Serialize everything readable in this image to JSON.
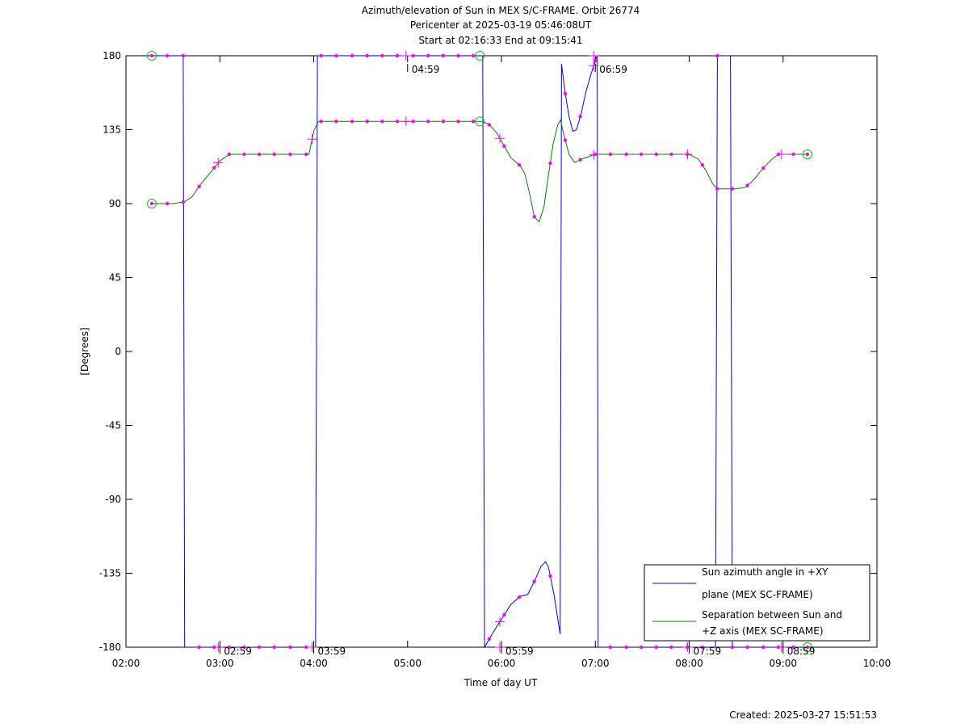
{
  "chart_data": {
    "type": "line",
    "title": "Azimuth/elevation of Sun in MEX S/C-FRAME.  Orbit 26774",
    "subtitle_1": "Pericenter at 2025-03-19 05:46:08UT",
    "subtitle_2": "Start at 02:16:33 End at 09:15:41",
    "xlabel": "Time of day UT",
    "ylabel": "[Degrees]",
    "xlim": [
      2.0,
      10.0
    ],
    "ylim": [
      -180,
      180
    ],
    "x_ticks": [
      "02:00",
      "03:00",
      "04:00",
      "05:00",
      "06:00",
      "07:00",
      "08:00",
      "09:00",
      "10:00"
    ],
    "y_ticks": [
      "180",
      "135",
      "90",
      "45",
      "0",
      "-45",
      "-90",
      "-135",
      "-180"
    ],
    "grid": false,
    "legend_position": "bottom-right",
    "footer": "Created: 2025-03-27 15:51:53",
    "series": [
      {
        "name": "Sun azimuth angle in +XY plane (MEX SC-FRAME)",
        "legend_line1": "Sun azimuth angle in +XY",
        "legend_line2": "plane (MEX SC-FRAME)",
        "color": "#0000ff",
        "points": [
          [
            2.275,
            180
          ],
          [
            2.61,
            180
          ],
          [
            2.625,
            -180
          ],
          [
            2.9,
            -180
          ],
          [
            3.2,
            -180
          ],
          [
            3.5,
            -180
          ],
          [
            3.8,
            -180
          ],
          [
            4.02,
            -180
          ],
          [
            4.04,
            180
          ],
          [
            4.4,
            180
          ],
          [
            4.8,
            180
          ],
          [
            5.2,
            180
          ],
          [
            5.6,
            180
          ],
          [
            5.8,
            180
          ],
          [
            5.82,
            -180
          ],
          [
            5.9,
            -172
          ],
          [
            6.0,
            -163
          ],
          [
            6.1,
            -154
          ],
          [
            6.2,
            -149
          ],
          [
            6.28,
            -148
          ],
          [
            6.35,
            -140
          ],
          [
            6.42,
            -131
          ],
          [
            6.47,
            -128
          ],
          [
            6.5,
            -131
          ],
          [
            6.56,
            -148
          ],
          [
            6.6,
            -163
          ],
          [
            6.625,
            -172
          ],
          [
            6.64,
            175
          ],
          [
            6.68,
            157
          ],
          [
            6.72,
            143
          ],
          [
            6.76,
            134
          ],
          [
            6.8,
            135
          ],
          [
            6.85,
            145
          ],
          [
            6.9,
            158
          ],
          [
            6.95,
            168
          ],
          [
            7.0,
            177
          ],
          [
            7.02,
            180
          ],
          [
            7.03,
            -180
          ],
          [
            7.3,
            -180
          ],
          [
            7.7,
            -180
          ],
          [
            8.1,
            -180
          ],
          [
            8.28,
            -180
          ],
          [
            8.3,
            180
          ],
          [
            8.44,
            180
          ],
          [
            8.46,
            -180
          ],
          [
            8.7,
            -180
          ],
          [
            9.0,
            -180
          ],
          [
            9.26,
            -180
          ]
        ]
      },
      {
        "name": "Separation between Sun and +Z axis (MEX SC-FRAME)",
        "legend_line1": "Separation between Sun and",
        "legend_line2": "+Z axis (MEX SC-FRAME)",
        "color": "#008000",
        "points": [
          [
            2.275,
            90
          ],
          [
            2.5,
            90
          ],
          [
            2.62,
            91
          ],
          [
            2.7,
            94
          ],
          [
            2.8,
            102
          ],
          [
            2.9,
            109
          ],
          [
            3.0,
            116
          ],
          [
            3.1,
            120
          ],
          [
            3.2,
            120
          ],
          [
            3.5,
            120
          ],
          [
            3.8,
            120
          ],
          [
            3.95,
            120
          ],
          [
            4.0,
            134
          ],
          [
            4.05,
            140
          ],
          [
            4.3,
            140
          ],
          [
            4.7,
            140
          ],
          [
            5.1,
            140
          ],
          [
            5.5,
            140
          ],
          [
            5.8,
            140
          ],
          [
            5.87,
            138
          ],
          [
            5.95,
            133
          ],
          [
            6.02,
            126
          ],
          [
            6.1,
            118
          ],
          [
            6.2,
            113
          ],
          [
            6.25,
            108
          ],
          [
            6.3,
            96
          ],
          [
            6.35,
            82
          ],
          [
            6.4,
            79
          ],
          [
            6.45,
            87
          ],
          [
            6.5,
            107
          ],
          [
            6.55,
            126
          ],
          [
            6.6,
            138
          ],
          [
            6.63,
            141
          ],
          [
            6.66,
            133
          ],
          [
            6.72,
            120
          ],
          [
            6.78,
            115
          ],
          [
            6.85,
            117
          ],
          [
            6.95,
            119
          ],
          [
            7.0,
            120
          ],
          [
            7.3,
            120
          ],
          [
            7.7,
            120
          ],
          [
            8.0,
            120
          ],
          [
            8.1,
            117
          ],
          [
            8.18,
            110
          ],
          [
            8.25,
            102
          ],
          [
            8.3,
            99
          ],
          [
            8.5,
            99
          ],
          [
            8.6,
            100
          ],
          [
            8.68,
            104
          ],
          [
            8.78,
            111
          ],
          [
            8.88,
            117
          ],
          [
            8.95,
            120
          ],
          [
            9.1,
            120
          ],
          [
            9.26,
            120
          ]
        ]
      }
    ],
    "markers": {
      "color": "#ff00ff",
      "x": [
        2.275,
        2.44,
        2.61,
        2.78,
        2.94,
        3.1,
        3.26,
        3.42,
        3.58,
        3.75,
        3.92,
        4.08,
        4.24,
        4.41,
        4.57,
        4.73,
        4.89,
        5.06,
        5.22,
        5.38,
        5.54,
        5.7,
        5.87,
        6.03,
        6.19,
        6.35,
        6.52,
        6.68,
        6.84,
        7.0,
        7.16,
        7.33,
        7.49,
        7.65,
        7.81,
        7.98,
        8.14,
        8.3,
        8.46,
        8.62,
        8.79,
        8.95,
        9.11,
        9.26
      ]
    },
    "orbit_markers": [
      {
        "x": 2.275,
        "kind": "circle"
      },
      {
        "x": 5.77,
        "kind": "circle"
      },
      {
        "x": 9.26,
        "kind": "circle"
      }
    ],
    "time_annotations": [
      {
        "label": "02:59",
        "x": 2.983,
        "y": -180
      },
      {
        "label": "03:59",
        "x": 3.983,
        "y": -180
      },
      {
        "label": "04:59",
        "x": 4.983,
        "y": 180
      },
      {
        "label": "05:59",
        "x": 5.983,
        "y": -180
      },
      {
        "label": "06:59",
        "x": 6.983,
        "y": 180
      },
      {
        "label": "07:59",
        "x": 7.983,
        "y": -180
      },
      {
        "label": "08:59",
        "x": 8.983,
        "y": -180
      }
    ]
  }
}
